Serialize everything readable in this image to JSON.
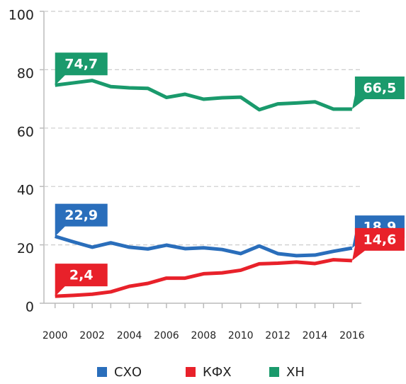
{
  "chart_data": {
    "type": "line",
    "x": [
      2000,
      2001,
      2002,
      2003,
      2004,
      2005,
      2006,
      2007,
      2008,
      2009,
      2010,
      2011,
      2012,
      2013,
      2014,
      2015,
      2016
    ],
    "series": [
      {
        "name": "СХО",
        "color": "#2a6ebb",
        "values": [
          22.9,
          21.0,
          19.2,
          20.7,
          19.2,
          18.6,
          19.9,
          18.7,
          19.0,
          18.4,
          17.0,
          19.6,
          17.0,
          16.3,
          16.5,
          17.8,
          18.9
        ],
        "value_labels": [
          "22,9",
          null,
          null,
          null,
          null,
          null,
          null,
          null,
          null,
          null,
          null,
          null,
          null,
          null,
          null,
          null,
          "18,9"
        ]
      },
      {
        "name": "КФХ",
        "color": "#e8212a",
        "values": [
          2.4,
          2.7,
          3.1,
          3.9,
          5.8,
          6.8,
          8.6,
          8.6,
          10.1,
          10.4,
          11.3,
          13.5,
          13.7,
          14.1,
          13.6,
          14.9,
          14.6
        ],
        "value_labels": [
          "2,4",
          null,
          null,
          null,
          null,
          null,
          null,
          null,
          null,
          null,
          null,
          null,
          null,
          null,
          null,
          null,
          "14,6"
        ]
      },
      {
        "name": "ХН",
        "color": "#1a9a6c",
        "values": [
          74.7,
          75.5,
          76.3,
          74.2,
          73.8,
          73.6,
          70.5,
          71.6,
          69.9,
          70.4,
          70.6,
          66.3,
          68.3,
          68.6,
          69.0,
          66.5,
          66.5
        ],
        "value_labels": [
          "74,7",
          null,
          null,
          null,
          null,
          null,
          null,
          null,
          null,
          null,
          null,
          null,
          null,
          null,
          null,
          null,
          "66,5"
        ]
      }
    ],
    "xlim": [
      1999.4,
      2016.5
    ],
    "xticks": [
      2000,
      2002,
      2004,
      2006,
      2008,
      2010,
      2012,
      2014,
      2016
    ],
    "ylim": [
      0,
      100
    ],
    "yticks": [
      0,
      20,
      40,
      60,
      80,
      100
    ],
    "grid": true,
    "legend": "bottom"
  }
}
